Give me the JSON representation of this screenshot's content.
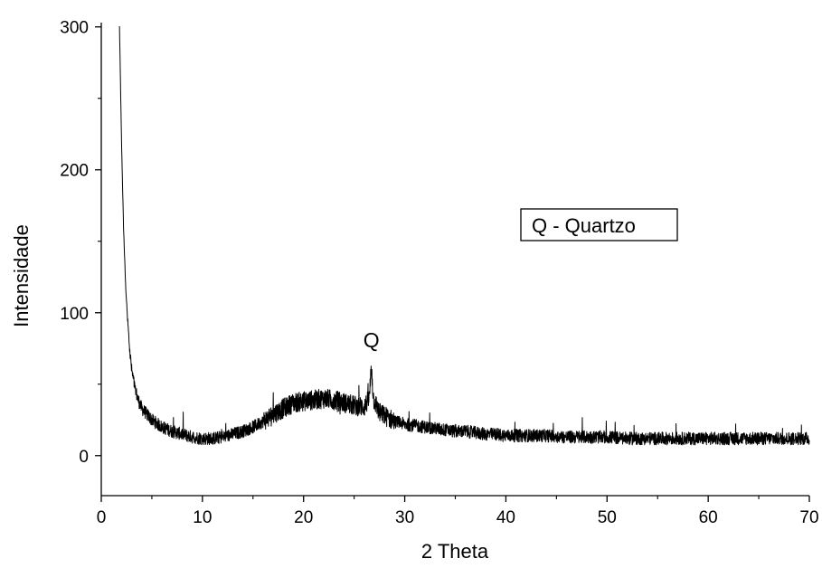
{
  "chart_data": {
    "type": "line",
    "title": "",
    "xlabel": "2 Theta",
    "ylabel": "Intensidade",
    "xlim": [
      0,
      70
    ],
    "ylim": [
      -28,
      303
    ],
    "xticks": [
      0,
      10,
      20,
      30,
      40,
      50,
      60,
      70
    ],
    "yticks": [
      0,
      100,
      200,
      300
    ],
    "grid": false,
    "line_color": "#000000",
    "legend": {
      "text": "Q - Quartzo",
      "placement": "center-right"
    },
    "annotations": [
      {
        "text": "Q",
        "x": 26.7,
        "y": 63
      }
    ],
    "series": [
      {
        "x": [
          1.8,
          2.0,
          2.2,
          2.4,
          2.6,
          2.8,
          3.0,
          3.3,
          3.6,
          4.0,
          4.5,
          5.0,
          6.0,
          7.0,
          8.0,
          9.0,
          10.0,
          11.0,
          12.0,
          13.0,
          14.0,
          15.0,
          16.0,
          17.0,
          18.0,
          19.0,
          20.0,
          21.0,
          22.0,
          23.0,
          24.0,
          25.0,
          26.0,
          26.5,
          26.7,
          26.9,
          27.5,
          28.0,
          29.0,
          30.0,
          31.0,
          32.0,
          33.0,
          34.0,
          35.0,
          36.0,
          37.0,
          38.0,
          39.0,
          40.0,
          42.0,
          44.0,
          46.0,
          48.0,
          50.0,
          52.0,
          54.0,
          56.0,
          58.0,
          60.0,
          62.0,
          64.0,
          66.0,
          68.0,
          70.0
        ],
        "y": [
          300,
          220,
          160,
          120,
          95,
          75,
          60,
          48,
          40,
          33,
          29,
          25,
          20,
          17,
          15,
          13,
          12,
          12,
          13,
          15,
          17,
          20,
          24,
          29,
          33,
          37,
          38,
          39,
          40,
          39,
          37,
          35,
          34,
          40,
          63,
          40,
          30,
          28,
          24,
          22,
          21,
          20,
          19,
          18,
          17,
          17,
          16,
          15,
          15,
          14,
          14,
          14,
          13,
          13,
          13,
          12,
          12,
          12,
          12,
          12,
          12,
          12,
          12,
          12,
          12
        ]
      }
    ]
  }
}
